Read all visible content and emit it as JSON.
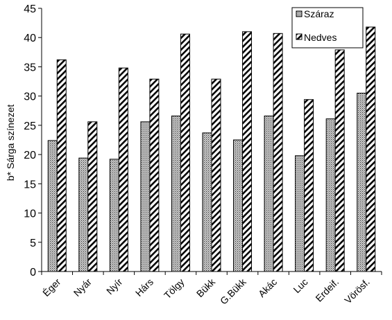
{
  "chart_data": {
    "type": "bar",
    "title": "",
    "xlabel": "",
    "ylabel": "b* Sárga színezet",
    "ylim": [
      0,
      45
    ],
    "yticks": [
      0,
      5,
      10,
      15,
      20,
      25,
      30,
      35,
      40,
      45
    ],
    "grid": false,
    "legend_position": "top-right",
    "categories": [
      "Éger",
      "Nyár",
      "Nyír",
      "Hárs",
      "Tölgy",
      "Bükk",
      "G.Bükk",
      "Akác",
      "Luc",
      "Erdeif.",
      "Vörösf."
    ],
    "series": [
      {
        "name": "Száraz",
        "pattern": "dots",
        "values": [
          22.4,
          19.4,
          19.2,
          25.6,
          26.6,
          23.7,
          22.5,
          26.6,
          19.8,
          26.1,
          30.5
        ]
      },
      {
        "name": "Nedves",
        "pattern": "hatch",
        "values": [
          36.2,
          25.6,
          34.8,
          32.9,
          40.6,
          32.9,
          41.0,
          40.7,
          29.4,
          37.9,
          41.8
        ]
      }
    ]
  }
}
